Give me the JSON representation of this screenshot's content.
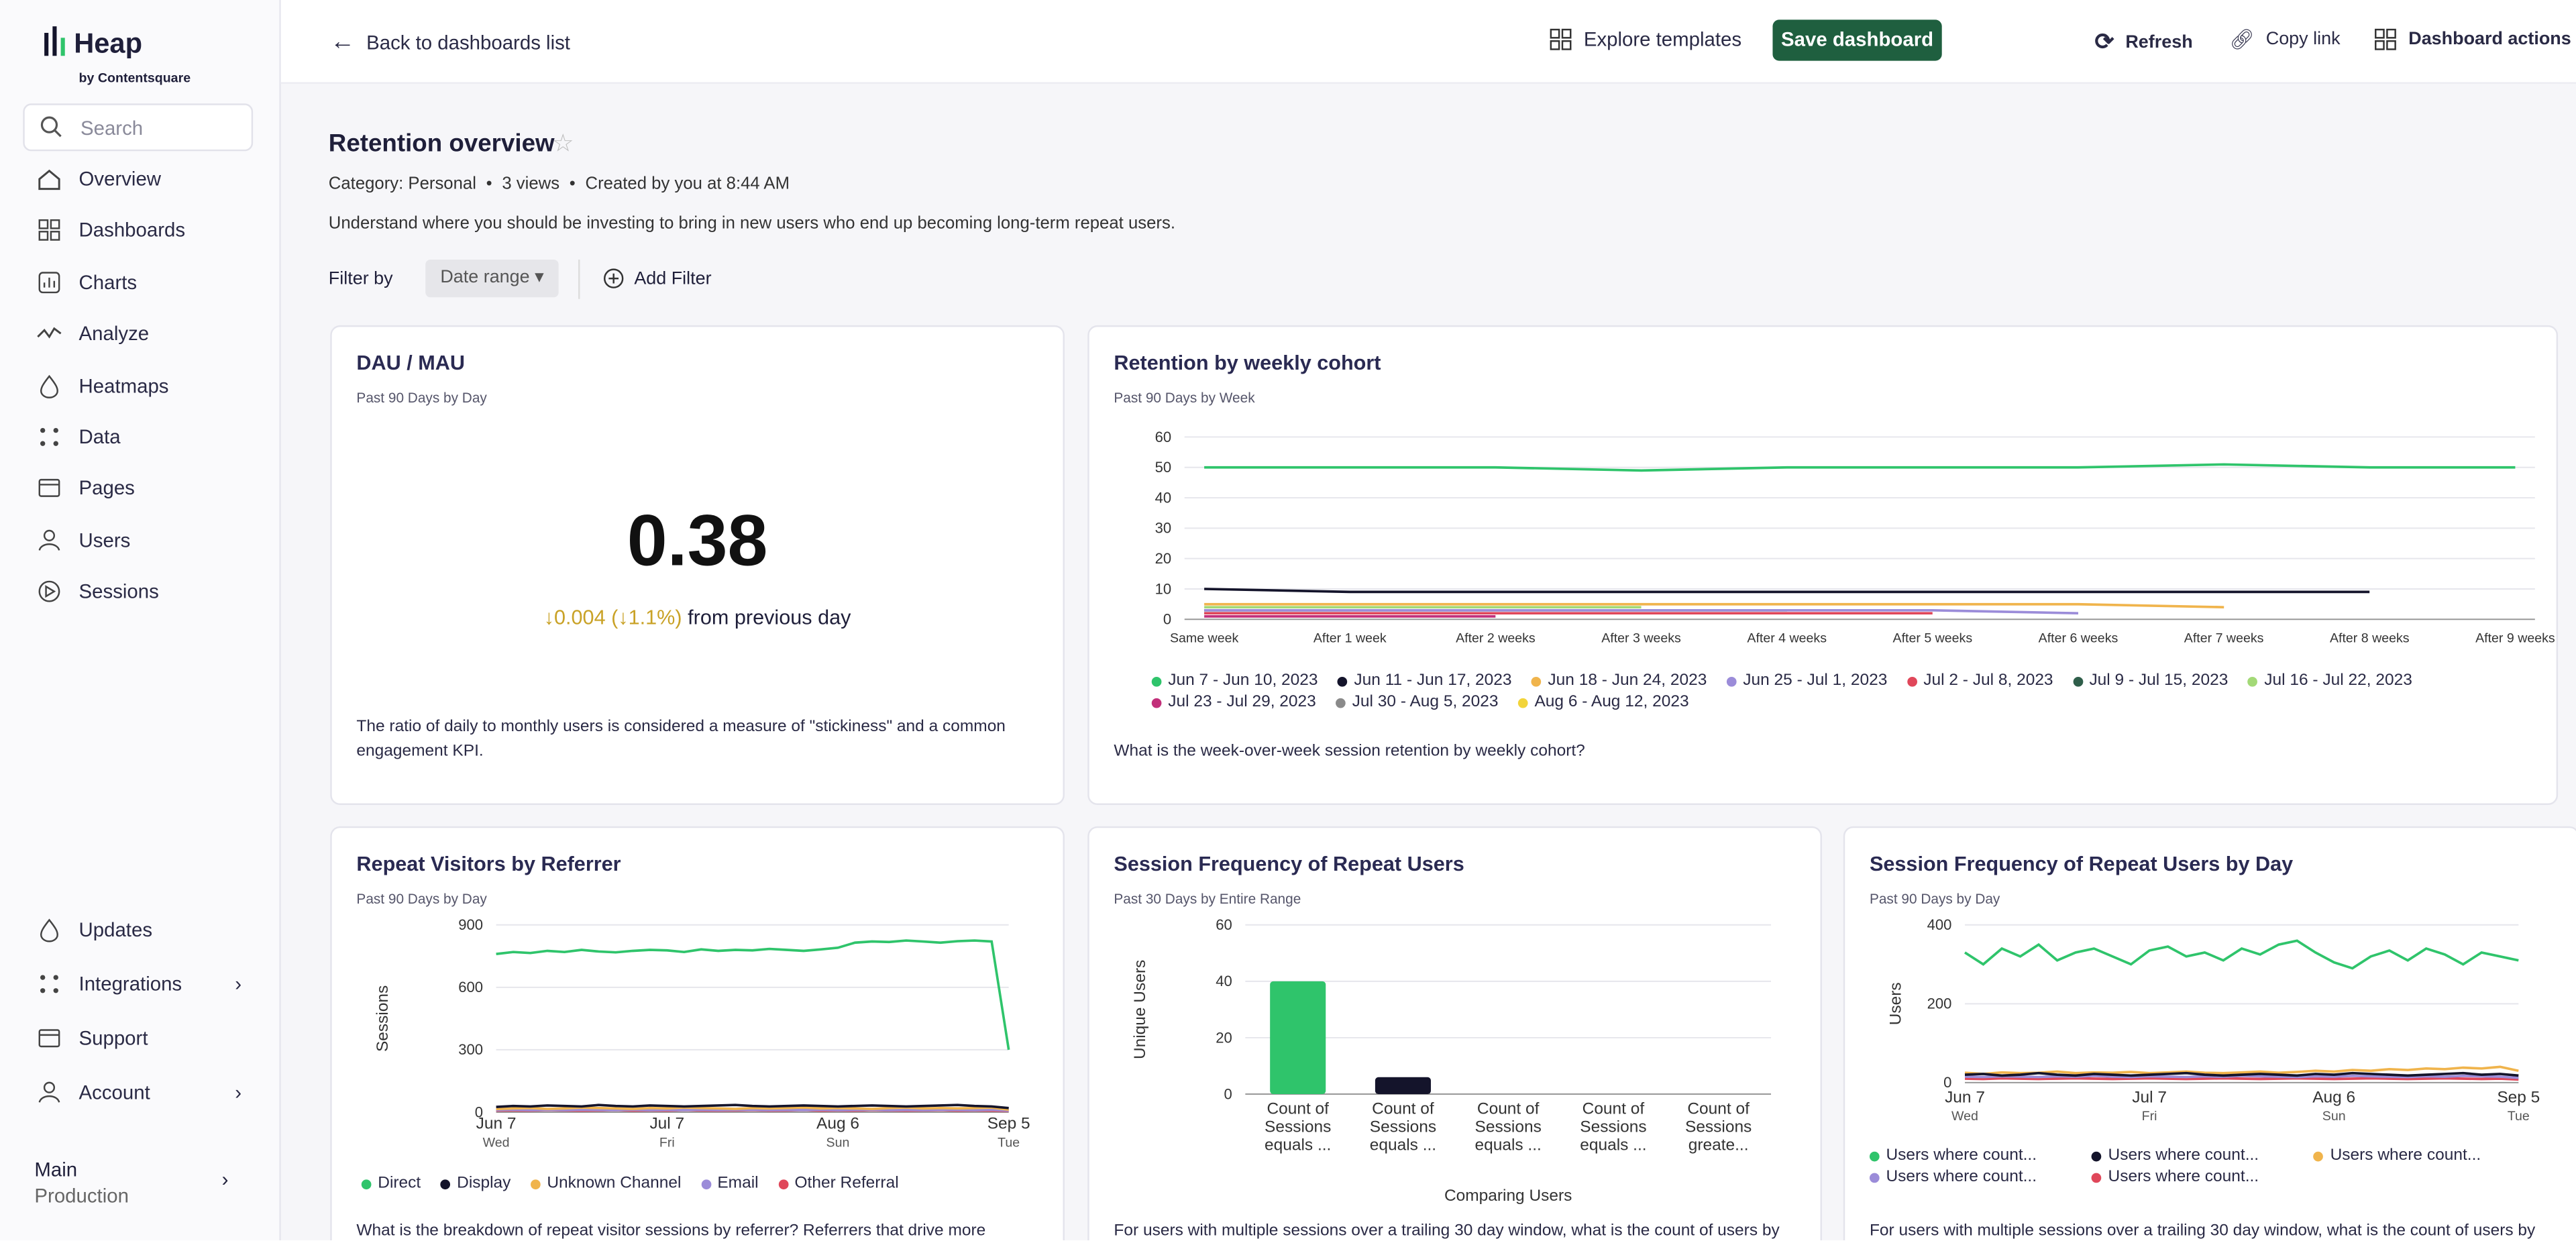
{
  "sidebar": {
    "logo": "Heap",
    "logo_sub": "by Contentsquare",
    "search": "Search",
    "nav": [
      "Overview",
      "Dashboards",
      "Charts",
      "Analyze",
      "Heatmaps",
      "Data",
      "Pages",
      "Users",
      "Sessions"
    ],
    "bottom": [
      "Updates",
      "Integrations",
      "Support",
      "Account"
    ],
    "env": "Main",
    "env_sub": "Production"
  },
  "topbar": {
    "back": "Back to dashboards list",
    "explore": "Explore templates",
    "save": "Save dashboard",
    "refresh": "Refresh",
    "copy": "Copy link",
    "actions": "Dashboard actions"
  },
  "dashboard": {
    "title": "Retention overview",
    "meta": [
      "Category: Personal",
      "3 views",
      "Created by you at 8:44 AM"
    ],
    "description": "Understand where you should be investing to bring in new users who end up becoming long-term repeat users.",
    "filter_label": "Filter by",
    "filter_button": "Date range",
    "add_filter": "Add Filter"
  },
  "kpi": {
    "title": "DAU / MAU",
    "subtitle": "Past 90 Days by Day",
    "value": 0.38,
    "change": "↓0.004 (↓1.1%)",
    "change_suffix": "from previous day",
    "description": "The ratio of daily to monthly users is considered a measure of \"stickiness\" and a common engagement KPI."
  },
  "chart_data": [
    {
      "type": "line",
      "title": "Retention by weekly cohort",
      "subtitle": "Past 90 Days by Week",
      "categories": [
        "Same week",
        "After 1 week",
        "After 2 weeks",
        "After 3 weeks",
        "After 4 weeks",
        "After 5 weeks",
        "After 6 weeks",
        "After 7 weeks",
        "After 8 weeks",
        "After 9 weeks"
      ],
      "ylim": [
        0,
        60
      ],
      "yticks": [
        0,
        10,
        20,
        30,
        40,
        50,
        60
      ],
      "grid": true,
      "series": [
        {
          "name": "Jun 7 - Jun 10, 2023",
          "color": "#2fc46b",
          "values": [
            50,
            50,
            50,
            49,
            50,
            50,
            50,
            51,
            50,
            50
          ]
        },
        {
          "name": "Jun 11 - Jun 17, 2023",
          "color": "#14142b",
          "values": [
            10,
            9,
            9,
            9,
            9,
            9,
            9,
            9,
            9,
            null
          ]
        },
        {
          "name": "Jun 18 - Jun 24, 2023",
          "color": "#f0b44c",
          "values": [
            5,
            5,
            5,
            5,
            5,
            5,
            5,
            4,
            null,
            null
          ]
        },
        {
          "name": "Jun 25 - Jul 1, 2023",
          "color": "#9b8cd9",
          "values": [
            3,
            3,
            3,
            3,
            3,
            3,
            2,
            null,
            null,
            null
          ]
        },
        {
          "name": "Jul 2 - Jul 8, 2023",
          "color": "#e0475a",
          "values": [
            2,
            2,
            2,
            2,
            2,
            2,
            null,
            null,
            null,
            null
          ]
        },
        {
          "name": "Jul 9 - Jul 15, 2023",
          "color": "#2f5e4a",
          "values": [
            3,
            3,
            3,
            3,
            3,
            null,
            null,
            null,
            null,
            null
          ]
        },
        {
          "name": "Jul 16 - Jul 22, 2023",
          "color": "#a3d977",
          "values": [
            4,
            4,
            4,
            4,
            null,
            null,
            null,
            null,
            null,
            null
          ]
        },
        {
          "name": "Jul 23 - Jul 29, 2023",
          "color": "#c2307a",
          "values": [
            1,
            1,
            1,
            null,
            null,
            null,
            null,
            null,
            null,
            null
          ]
        },
        {
          "name": "Jul 30 - Aug 5, 2023",
          "color": "#8a8a8a",
          "values": [
            2,
            2,
            null,
            null,
            null,
            null,
            null,
            null,
            null,
            null
          ]
        },
        {
          "name": "Aug 6 - Aug 12, 2023",
          "color": "#f2d43a",
          "values": [
            1,
            null,
            null,
            null,
            null,
            null,
            null,
            null,
            null,
            null
          ]
        }
      ],
      "description": "What is the week-over-week session retention by weekly cohort?"
    },
    {
      "type": "line",
      "title": "Repeat Visitors by Referrer",
      "subtitle": "Past 90 Days by Day",
      "ylabel": "Sessions",
      "categories": [
        "Jun 7",
        null,
        null,
        null,
        null,
        null,
        null,
        null,
        null,
        null,
        "Jul 7",
        null,
        null,
        null,
        null,
        null,
        null,
        null,
        null,
        null,
        "Aug 6",
        null,
        null,
        null,
        null,
        null,
        null,
        null,
        null,
        null,
        "Sep 5"
      ],
      "category_sublabels": [
        "Wed",
        null,
        null,
        null,
        null,
        null,
        null,
        null,
        null,
        null,
        "Fri",
        null,
        null,
        null,
        null,
        null,
        null,
        null,
        null,
        null,
        "Sun",
        null,
        null,
        null,
        null,
        null,
        null,
        null,
        null,
        null,
        "Tue"
      ],
      "ylim": [
        0,
        900
      ],
      "yticks": [
        0,
        300,
        600,
        900
      ],
      "grid": true,
      "series": [
        {
          "name": "Direct",
          "color": "#2fc46b",
          "values": [
            760,
            770,
            765,
            775,
            770,
            780,
            772,
            768,
            775,
            780,
            778,
            770,
            782,
            775,
            780,
            778,
            785,
            780,
            775,
            782,
            790,
            815,
            820,
            818,
            825,
            820,
            815,
            822,
            825,
            820,
            300
          ]
        },
        {
          "name": "Display",
          "color": "#14142b",
          "values": [
            25,
            30,
            28,
            32,
            30,
            28,
            35,
            30,
            28,
            32,
            30,
            28,
            30,
            32,
            35,
            30,
            28,
            30,
            32,
            30,
            28,
            30,
            32,
            30,
            28,
            30,
            32,
            35,
            30,
            28,
            20
          ]
        },
        {
          "name": "Unknown Channel",
          "color": "#f0b44c",
          "values": [
            15,
            18,
            20,
            16,
            18,
            22,
            20,
            18,
            16,
            20,
            18,
            22,
            20,
            18,
            16,
            20,
            18,
            20,
            22,
            18,
            20,
            18,
            16,
            20,
            22,
            18,
            20,
            18,
            20,
            22,
            12
          ]
        },
        {
          "name": "Email",
          "color": "#9b8cd9",
          "values": [
            10,
            12,
            10,
            11,
            10,
            12,
            11,
            10,
            12,
            10,
            11,
            10,
            12,
            10,
            11,
            12,
            10,
            11,
            10,
            12,
            10,
            11,
            12,
            10,
            11,
            10,
            12,
            11,
            10,
            12,
            8
          ]
        },
        {
          "name": "Other Referral",
          "color": "#e0475a",
          "values": [
            8,
            9,
            8,
            10,
            9,
            8,
            9,
            10,
            8,
            9,
            8,
            10,
            9,
            8,
            9,
            10,
            8,
            9,
            10,
            8,
            9,
            8,
            10,
            9,
            8,
            9,
            10,
            8,
            9,
            8,
            6
          ]
        }
      ],
      "description": "What is the breakdown of repeat visitor sessions by referrer? Referrers that drive more"
    },
    {
      "type": "bar",
      "title": "Session Frequency of Repeat Users",
      "subtitle": "Past 30 Days by Entire Range",
      "ylabel": "Unique Users",
      "xlabel": "Comparing Users",
      "categories": [
        [
          "Count of",
          "Sessions",
          "equals ..."
        ],
        [
          "Count of",
          "Sessions",
          "equals ..."
        ],
        [
          "Count of",
          "Sessions",
          "equals ..."
        ],
        [
          "Count of",
          "Sessions",
          "equals ..."
        ],
        [
          "Count of",
          "Sessions",
          "greate..."
        ]
      ],
      "values": [
        40,
        6,
        0,
        0,
        0
      ],
      "colors": [
        "#2fc46b",
        "#14142b",
        "#f0b44c",
        "#9b8cd9",
        "#e0475a"
      ],
      "ylim": [
        0,
        60
      ],
      "yticks": [
        0,
        20,
        40,
        60
      ],
      "grid": true,
      "description": "For users with multiple sessions over a trailing 30 day window, what is the count of users by"
    },
    {
      "type": "line",
      "title": "Session Frequency of Repeat Users by Day",
      "subtitle": "Past 90 Days by Day",
      "ylabel": "Users",
      "categories": [
        "Jun 7",
        null,
        null,
        null,
        null,
        null,
        null,
        null,
        null,
        null,
        "Jul 7",
        null,
        null,
        null,
        null,
        null,
        null,
        null,
        null,
        null,
        "Aug 6",
        null,
        null,
        null,
        null,
        null,
        null,
        null,
        null,
        null,
        "Sep 5"
      ],
      "category_sublabels": [
        "Wed",
        null,
        null,
        null,
        null,
        null,
        null,
        null,
        null,
        null,
        "Fri",
        null,
        null,
        null,
        null,
        null,
        null,
        null,
        null,
        null,
        "Sun",
        null,
        null,
        null,
        null,
        null,
        null,
        null,
        null,
        null,
        "Tue"
      ],
      "ylim": [
        0,
        400
      ],
      "yticks": [
        0,
        200,
        400
      ],
      "grid": true,
      "legend_columns": 3,
      "series": [
        {
          "name": "Users where count...",
          "color": "#2fc46b",
          "values": [
            330,
            300,
            340,
            320,
            350,
            310,
            330,
            340,
            320,
            300,
            335,
            345,
            320,
            330,
            310,
            340,
            325,
            350,
            360,
            330,
            305,
            290,
            320,
            335,
            310,
            340,
            325,
            300,
            330,
            320,
            310
          ]
        },
        {
          "name": "Users where count...",
          "color": "#14142b",
          "values": [
            20,
            22,
            18,
            20,
            24,
            20,
            18,
            22,
            20,
            18,
            20,
            22,
            24,
            20,
            18,
            20,
            22,
            20,
            18,
            22,
            20,
            24,
            22,
            20,
            18,
            20,
            22,
            24,
            20,
            22,
            18
          ]
        },
        {
          "name": "Users where count...",
          "color": "#f0b44c",
          "values": [
            25,
            22,
            26,
            24,
            25,
            28,
            24,
            26,
            25,
            27,
            24,
            26,
            28,
            25,
            24,
            26,
            28,
            25,
            27,
            30,
            28,
            32,
            30,
            34,
            32,
            36,
            34,
            38,
            36,
            40,
            30
          ]
        },
        {
          "name": "Users where count...",
          "color": "#9b8cd9",
          "values": [
            15,
            14,
            16,
            15,
            14,
            16,
            15,
            17,
            15,
            14,
            16,
            15,
            14,
            16,
            15,
            17,
            16,
            15,
            14,
            16,
            15,
            17,
            16,
            15,
            14,
            16,
            15,
            17,
            16,
            15,
            12
          ]
        },
        {
          "name": "Users where count...",
          "color": "#e0475a",
          "values": [
            10,
            9,
            11,
            10,
            9,
            10,
            11,
            10,
            9,
            10,
            11,
            10,
            9,
            10,
            11,
            10,
            9,
            10,
            11,
            10,
            9,
            10,
            11,
            10,
            9,
            10,
            11,
            10,
            9,
            10,
            8
          ]
        }
      ],
      "description": "For users with multiple sessions over a trailing 30 day window, what is the count of users by"
    }
  ]
}
